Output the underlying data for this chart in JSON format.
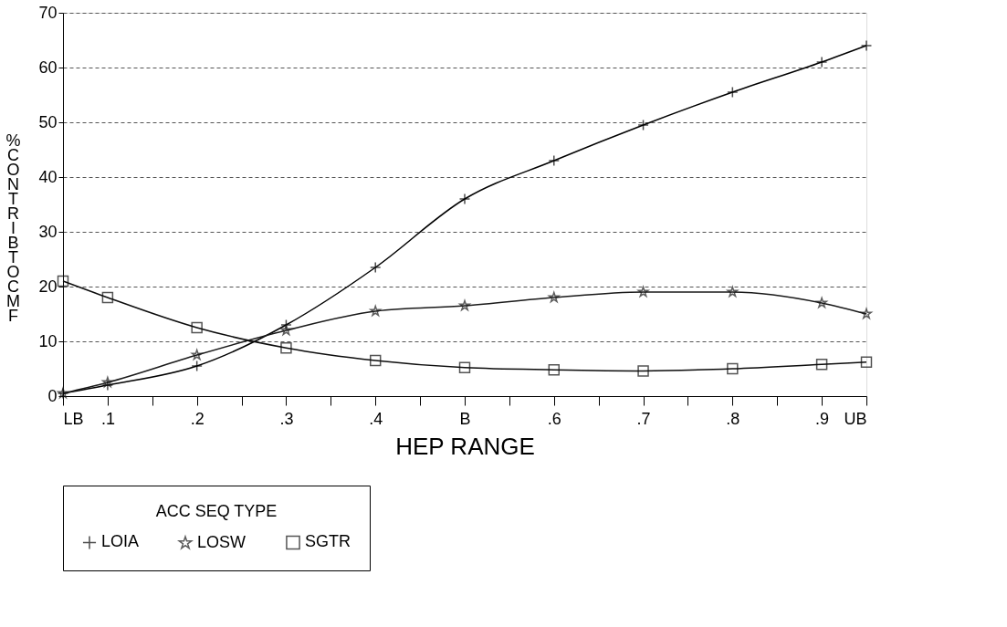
{
  "chart_data": {
    "type": "line",
    "xlabel": "HEP RANGE",
    "ylabel": "% CONTRIB TO CMF",
    "legend_title": "ACC SEQ TYPE",
    "x": [
      0.05,
      0.1,
      0.2,
      0.3,
      0.4,
      0.5,
      0.6,
      0.7,
      0.8,
      0.9,
      0.95
    ],
    "series": [
      {
        "name": "LOIA",
        "color": "#000000",
        "marker": "cross",
        "values": [
          0.5,
          2,
          5.5,
          13,
          23.5,
          36,
          43,
          49.5,
          55.5,
          61,
          64
        ]
      },
      {
        "name": "LOSW",
        "color": "#1a1a1a",
        "marker": "star",
        "values": [
          0.5,
          2.5,
          7.5,
          12,
          15.5,
          16.5,
          18,
          19,
          19,
          17,
          15
        ]
      },
      {
        "name": "SGTR",
        "color": "#0d0d0d",
        "marker": "square",
        "values": [
          21,
          18,
          12.5,
          8.8,
          6.5,
          5.2,
          4.8,
          4.6,
          5,
          5.8,
          6.2
        ]
      }
    ],
    "xlim": [
      0.05,
      0.95
    ],
    "xticks": [
      {
        "value": 0.05,
        "label": "LB"
      },
      {
        "value": 0.1,
        "label": ".1"
      },
      {
        "value": 0.15,
        "label": null
      },
      {
        "value": 0.2,
        "label": ".2"
      },
      {
        "value": 0.25,
        "label": null
      },
      {
        "value": 0.3,
        "label": ".3"
      },
      {
        "value": 0.35,
        "label": null
      },
      {
        "value": 0.4,
        "label": ".4"
      },
      {
        "value": 0.45,
        "label": null
      },
      {
        "value": 0.5,
        "label": "B"
      },
      {
        "value": 0.55,
        "label": null
      },
      {
        "value": 0.6,
        "label": ".6"
      },
      {
        "value": 0.65,
        "label": null
      },
      {
        "value": 0.7,
        "label": ".7"
      },
      {
        "value": 0.75,
        "label": null
      },
      {
        "value": 0.8,
        "label": ".8"
      },
      {
        "value": 0.85,
        "label": null
      },
      {
        "value": 0.9,
        "label": ".9"
      },
      {
        "value": 0.95,
        "label": "UB"
      }
    ],
    "ylim": [
      0,
      70
    ],
    "yticks": [
      0,
      10,
      20,
      30,
      40,
      50,
      60,
      70
    ],
    "grid": "y",
    "legend": "bottom",
    "line_style": "solid"
  }
}
